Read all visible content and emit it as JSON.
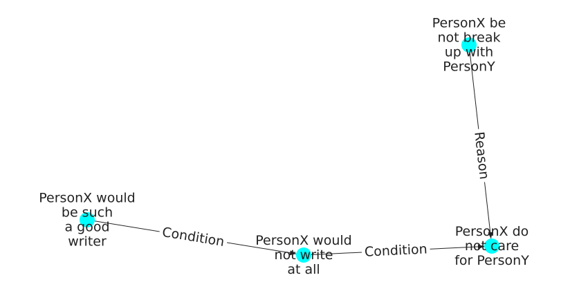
{
  "colors": {
    "node": "#00ffff",
    "edge": "#222222",
    "text": "#222222",
    "background": "#ffffff"
  },
  "nodes": [
    {
      "id": "n1",
      "lines": [
        "PersonX be",
        "not break",
        "up with",
        "PersonY"
      ]
    },
    {
      "id": "n2",
      "lines": [
        "PersonX would",
        "be such",
        "a good",
        "writer"
      ]
    },
    {
      "id": "n3",
      "lines": [
        "PersonX would",
        "not write",
        "at all"
      ]
    },
    {
      "id": "n4",
      "lines": [
        "PersonX do",
        "not care",
        "for PersonY"
      ]
    }
  ],
  "edges": [
    {
      "id": "e1",
      "source": "n1",
      "target": "n4",
      "label": "Reason"
    },
    {
      "id": "e2",
      "source": "n2",
      "target": "n3",
      "label": "Condition"
    },
    {
      "id": "e3",
      "source": "n3",
      "target": "n4",
      "label": "Condition"
    }
  ]
}
